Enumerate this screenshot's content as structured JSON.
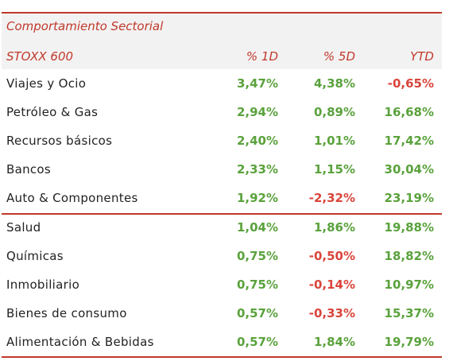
{
  "title": "Comportamiento Sectorial",
  "columns": {
    "index": "STOXX 600",
    "d1": "% 1D",
    "d5": "% 5D",
    "ytd": "YTD"
  },
  "colors": {
    "accent": "#c0392b",
    "positive": "#5aa23c",
    "negative": "#d9453b"
  },
  "rows": [
    {
      "name": "Viajes y Ocio",
      "d1": "3,47%",
      "d5": "4,38%",
      "ytd": "-0,65%"
    },
    {
      "name": "Petróleo & Gas",
      "d1": "2,94%",
      "d5": "0,89%",
      "ytd": "16,68%"
    },
    {
      "name": "Recursos básicos",
      "d1": "2,40%",
      "d5": "1,01%",
      "ytd": "17,42%"
    },
    {
      "name": "Bancos",
      "d1": "2,33%",
      "d5": "1,15%",
      "ytd": "30,04%"
    },
    {
      "name": "Auto & Componentes",
      "d1": "1,92%",
      "d5": "-2,32%",
      "ytd": "23,19%"
    },
    {
      "name": "Salud",
      "d1": "1,04%",
      "d5": "1,86%",
      "ytd": "19,88%"
    },
    {
      "name": "Químicas",
      "d1": "0,75%",
      "d5": "-0,50%",
      "ytd": "18,82%"
    },
    {
      "name": "Inmobiliario",
      "d1": "0,75%",
      "d5": "-0,14%",
      "ytd": "10,97%"
    },
    {
      "name": "Bienes de consumo",
      "d1": "0,57%",
      "d5": "-0,33%",
      "ytd": "15,37%"
    },
    {
      "name": "Alimentación & Bebidas",
      "d1": "0,57%",
      "d5": "1,84%",
      "ytd": "19,79%"
    }
  ]
}
